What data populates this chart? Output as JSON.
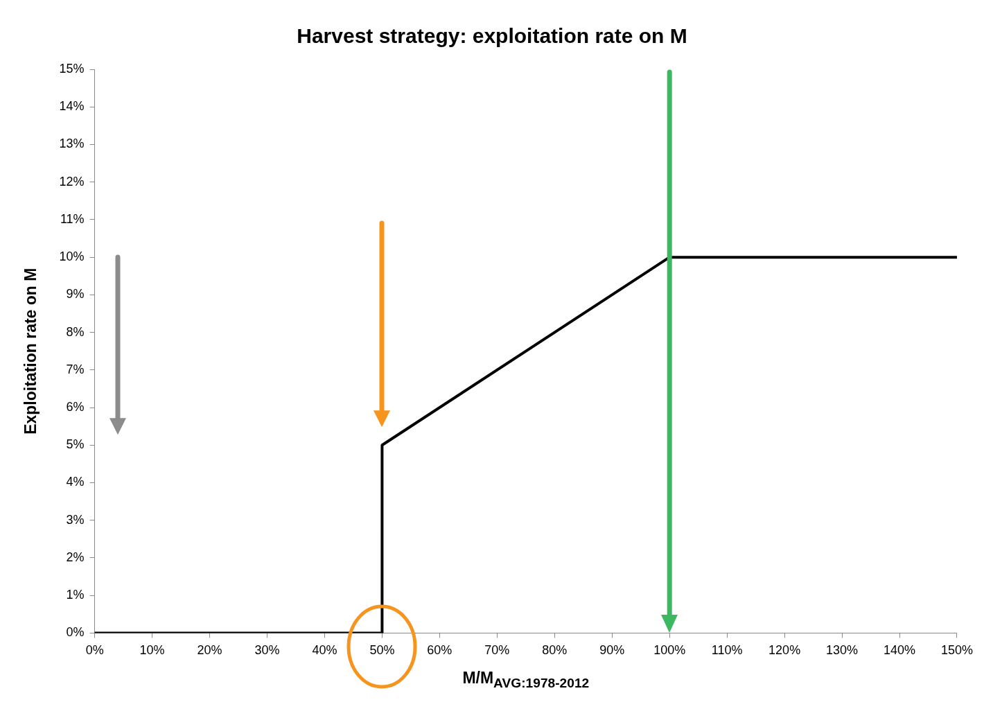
{
  "chart_data": {
    "type": "line",
    "title": "Harvest strategy: exploitation rate on M",
    "xlabel": "M/M$_{AVG:1978-2012}$",
    "ylabel": "Exploitation rate on M",
    "x": [
      0,
      50,
      50,
      100,
      150
    ],
    "series": [
      {
        "color": "#000000",
        "values": [
          0,
          0,
          5,
          10,
          10
        ]
      }
    ],
    "xlim": [
      0,
      150
    ],
    "xticks": [
      {
        "value": 0,
        "label": "0%"
      },
      {
        "value": 10,
        "label": "10%"
      },
      {
        "value": 20,
        "label": "20%"
      },
      {
        "value": 30,
        "label": "30%"
      },
      {
        "value": 40,
        "label": "40%"
      },
      {
        "value": 50,
        "label": "50%"
      },
      {
        "value": 60,
        "label": "60%"
      },
      {
        "value": 70,
        "label": "70%"
      },
      {
        "value": 80,
        "label": "80%"
      },
      {
        "value": 90,
        "label": "90%"
      },
      {
        "value": 100,
        "label": "100%"
      },
      {
        "value": 110,
        "label": "110%"
      },
      {
        "value": 120,
        "label": "120%"
      },
      {
        "value": 130,
        "label": "130%"
      },
      {
        "value": 140,
        "label": "140%"
      },
      {
        "value": 150,
        "label": "150%"
      }
    ],
    "ylim": [
      0,
      15
    ],
    "yticks": [
      {
        "value": 0,
        "label": "0%"
      },
      {
        "value": 1,
        "label": "1%"
      },
      {
        "value": 2,
        "label": "2%"
      },
      {
        "value": 3,
        "label": "3%"
      },
      {
        "value": 4,
        "label": "4%"
      },
      {
        "value": 5,
        "label": "5%"
      },
      {
        "value": 6,
        "label": "6%"
      },
      {
        "value": 7,
        "label": "7%"
      },
      {
        "value": 8,
        "label": "8%"
      },
      {
        "value": 9,
        "label": "9%"
      },
      {
        "value": 10,
        "label": "10%"
      },
      {
        "value": 11,
        "label": "11%"
      },
      {
        "value": 12,
        "label": "12%"
      },
      {
        "value": 13,
        "label": "13%"
      },
      {
        "value": 14,
        "label": "14%"
      },
      {
        "value": 15,
        "label": "15%"
      }
    ],
    "ref_lines": [
      {
        "axis": "x",
        "value": 100,
        "color": "#3cb860"
      }
    ],
    "grid": false,
    "legend": false,
    "marker": "none",
    "line_style": "solid"
  }
}
